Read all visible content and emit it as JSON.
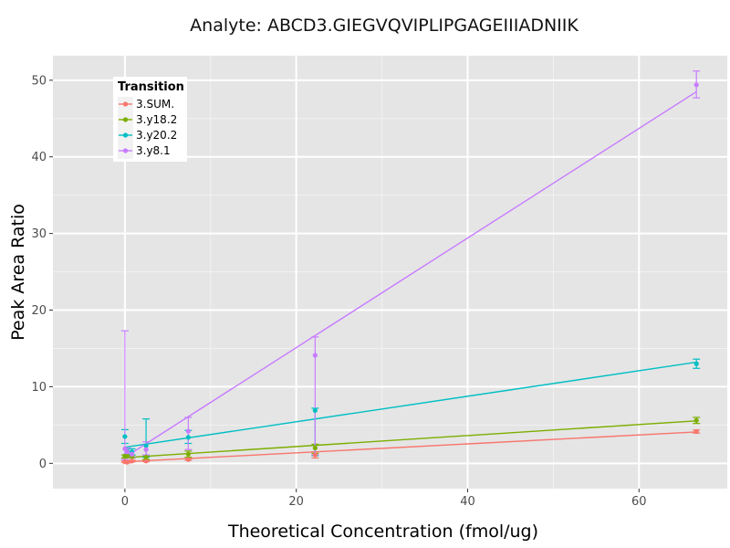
{
  "chart_data": {
    "type": "line",
    "title": "Analyte: ABCD3.GIEGVQVIPLIPGAGEIIIADNIIK",
    "xlabel": "Theoretical Concentration (fmol/ug)",
    "ylabel": "Peak Area Ratio",
    "xlim": [
      -8.4,
      70.3
    ],
    "ylim": [
      -3.3,
      53.2
    ],
    "xticks": [
      0,
      20,
      40,
      60
    ],
    "yticks": [
      0,
      10,
      20,
      30,
      40,
      50
    ],
    "grid": true,
    "legend": {
      "title": "Transition",
      "position": "top-left"
    },
    "series": [
      {
        "name": "3.SUM.",
        "color": "#F8766D",
        "fit": [
          [
            0,
            0.2
          ],
          [
            66.7,
            4.1
          ]
        ],
        "points": [
          {
            "x": 0,
            "y": 0.2,
            "lo": 0.1,
            "hi": 0.3
          },
          {
            "x": 0.27,
            "y": 0.15,
            "lo": 0.05,
            "hi": 0.25
          },
          {
            "x": 0.82,
            "y": 0.3,
            "lo": 0.2,
            "hi": 0.4
          },
          {
            "x": 2.47,
            "y": 0.3,
            "lo": 0.2,
            "hi": 0.45
          },
          {
            "x": 7.4,
            "y": 0.5,
            "lo": 0.4,
            "hi": 0.6
          },
          {
            "x": 22.2,
            "y": 1.1,
            "lo": 0.7,
            "hi": 1.5
          },
          {
            "x": 66.7,
            "y": 4.15,
            "lo": 3.95,
            "hi": 4.35
          }
        ]
      },
      {
        "name": "3.y18.2",
        "color": "#7CAE00",
        "fit": [
          [
            0,
            0.75
          ],
          [
            66.7,
            5.55
          ]
        ],
        "points": [
          {
            "x": 0,
            "y": 0.9,
            "lo": 0.7,
            "hi": 1.1
          },
          {
            "x": 0.27,
            "y": 1.0,
            "lo": 0.8,
            "hi": 1.2
          },
          {
            "x": 0.82,
            "y": 0.9,
            "lo": 0.7,
            "hi": 1.1
          },
          {
            "x": 2.47,
            "y": 0.8,
            "lo": 0.5,
            "hi": 1.1
          },
          {
            "x": 7.4,
            "y": 1.2,
            "lo": 0.8,
            "hi": 1.6
          },
          {
            "x": 22.2,
            "y": 2.0,
            "lo": 1.3,
            "hi": 2.5
          },
          {
            "x": 66.7,
            "y": 5.6,
            "lo": 5.2,
            "hi": 6.0
          }
        ]
      },
      {
        "name": "3.y20.2",
        "color": "#00BFC4",
        "fit": [
          [
            0,
            2.1
          ],
          [
            66.7,
            13.2
          ]
        ],
        "points": [
          {
            "x": 0,
            "y": 3.5,
            "lo": 2.6,
            "hi": 4.4
          },
          {
            "x": 0.27,
            "y": 1.6,
            "lo": 1.2,
            "hi": 2.0
          },
          {
            "x": 0.82,
            "y": 1.5,
            "lo": 1.1,
            "hi": 1.9
          },
          {
            "x": 2.47,
            "y": 2.3,
            "lo": 0.8,
            "hi": 5.8
          },
          {
            "x": 7.4,
            "y": 3.4,
            "lo": 2.6,
            "hi": 4.3
          },
          {
            "x": 22.2,
            "y": 6.9,
            "lo": 1.0,
            "hi": 7.2
          },
          {
            "x": 66.7,
            "y": 13.0,
            "lo": 12.4,
            "hi": 13.6
          }
        ]
      },
      {
        "name": "3.y8.1",
        "color": "#C77CFF",
        "fit": [
          [
            0,
            0.8
          ],
          [
            66.7,
            48.5
          ]
        ],
        "points": [
          {
            "x": 0,
            "y": 1.9,
            "lo": 0.5,
            "hi": 17.3
          },
          {
            "x": 0.27,
            "y": 1.5,
            "lo": 1.0,
            "hi": 2.0
          },
          {
            "x": 0.82,
            "y": 1.2,
            "lo": 0.8,
            "hi": 1.6
          },
          {
            "x": 2.47,
            "y": 1.8,
            "lo": 1.1,
            "hi": 2.8
          },
          {
            "x": 7.4,
            "y": 4.2,
            "lo": 1.8,
            "hi": 6.0
          },
          {
            "x": 22.2,
            "y": 14.1,
            "lo": 1.1,
            "hi": 16.5
          },
          {
            "x": 66.7,
            "y": 49.4,
            "lo": 47.7,
            "hi": 51.2
          }
        ]
      }
    ]
  }
}
